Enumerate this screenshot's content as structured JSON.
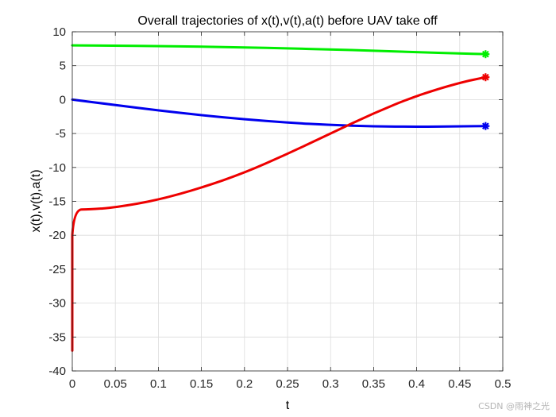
{
  "chart_data": {
    "type": "line",
    "title": "Overall trajectories of x(t),v(t),a(t) before UAV take off",
    "xlabel": "t",
    "ylabel": "x(t),v(t),a(t)",
    "xlim": [
      0,
      0.5
    ],
    "ylim": [
      -40,
      10
    ],
    "xticks": [
      0,
      0.05,
      0.1,
      0.15,
      0.2,
      0.25,
      0.3,
      0.35,
      0.4,
      0.45,
      0.5
    ],
    "xtick_labels": [
      "0",
      "0.05",
      "0.1",
      "0.15",
      "0.2",
      "0.25",
      "0.3",
      "0.35",
      "0.4",
      "0.45",
      "0.5"
    ],
    "yticks": [
      -40,
      -35,
      -30,
      -25,
      -20,
      -15,
      -10,
      -5,
      0,
      5,
      10
    ],
    "ytick_labels": [
      "-40",
      "-35",
      "-30",
      "-25",
      "-20",
      "-15",
      "-10",
      "-5",
      "0",
      "5",
      "10"
    ],
    "grid": true,
    "series": [
      {
        "color": "#00ee00",
        "end_marker": "asterisk",
        "x": [
          0,
          0.05,
          0.1,
          0.15,
          0.2,
          0.25,
          0.3,
          0.35,
          0.4,
          0.45,
          0.48
        ],
        "y": [
          8.0,
          7.95,
          7.9,
          7.8,
          7.7,
          7.55,
          7.4,
          7.2,
          7.0,
          6.8,
          6.7
        ]
      },
      {
        "color": "#0000ee",
        "end_marker": "asterisk",
        "x": [
          0,
          0.05,
          0.1,
          0.15,
          0.2,
          0.25,
          0.3,
          0.35,
          0.4,
          0.45,
          0.48
        ],
        "y": [
          0.0,
          -0.8,
          -1.6,
          -2.3,
          -2.9,
          -3.4,
          -3.75,
          -3.95,
          -4.0,
          -3.95,
          -3.9
        ]
      },
      {
        "color": "#ee0000",
        "end_marker": "asterisk",
        "x": [
          0,
          0,
          0,
          0.002,
          0.02,
          0.05,
          0.1,
          0.15,
          0.2,
          0.25,
          0.3,
          0.35,
          0.4,
          0.45,
          0.48
        ],
        "y": [
          -37.0,
          -34.0,
          -20.0,
          -16.2,
          -16.2,
          -15.9,
          -14.8,
          -13.0,
          -10.8,
          -8.0,
          -5.0,
          -2.0,
          0.6,
          2.5,
          3.3
        ]
      }
    ]
  },
  "watermark": "CSDN @雨神之光"
}
